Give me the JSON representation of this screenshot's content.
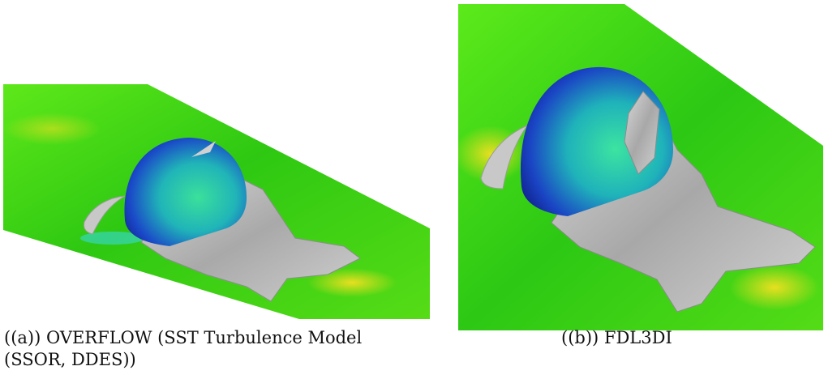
{
  "figure": {
    "panels": [
      {
        "caption": "((a)) OVERFLOW (SST Turbulence Model (SSOR, DDES))",
        "caption_line1": "((a)) OVERFLOW (SST Turbulence Model",
        "caption_line2": "(SSOR, DDES))"
      },
      {
        "caption": "((b)) FDL3DI"
      }
    ],
    "colors": {
      "surface_green": "#33cc11",
      "surface_yellow": "#e8e020",
      "surface_cyan": "#30d8c8",
      "dome_blue": "#1a3fc8",
      "dome_teal": "#2fd49a",
      "vortex_gray": "#b8b8b8"
    }
  }
}
